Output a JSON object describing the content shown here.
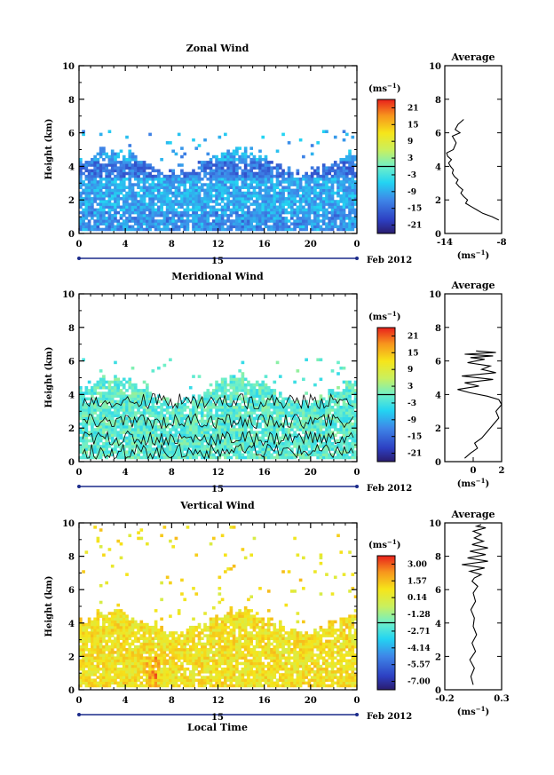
{
  "figure": {
    "date_label": "Feb 2012",
    "xlabel": "Local Time",
    "ylabel": "Height (km)",
    "unit_label": "(ms",
    "unit_sup": "−1",
    "average_title": "Average",
    "day_label": "15",
    "x_ticks": [
      "0",
      "4",
      "8",
      "12",
      "16",
      "20",
      "0"
    ],
    "y_ticks": [
      "0",
      "2",
      "4",
      "6",
      "8",
      "10"
    ]
  },
  "chart_data": [
    {
      "type": "heatmap",
      "title": "Zonal Wind",
      "xlabel": "",
      "ylabel": "Height (km)",
      "xlim": [
        0,
        24
      ],
      "ylim": [
        0,
        10
      ],
      "color_ticks": [
        "21",
        "15",
        "9",
        "3",
        "-3",
        "-9",
        "-15",
        "-21"
      ],
      "top_km": 4.6,
      "scatter_top_km": 6.1,
      "dominant_value": -8,
      "contour": false,
      "average": {
        "title": "Average",
        "xlim": [
          -14,
          -8
        ],
        "x_ticks": [
          "-14",
          "-8"
        ],
        "xlabel": "(ms",
        "x": [
          -8.3,
          -9,
          -10,
          -10.6,
          -11.2,
          -11.8,
          -11.6,
          -12,
          -12.3,
          -12.1,
          -12.5,
          -12.8,
          -12.6,
          -13,
          -13.2,
          -13.1,
          -13.4,
          -13.6,
          -13.3,
          -13.7,
          -13.8,
          -13.1,
          -12.8,
          -13.2,
          -12.4,
          -12.9,
          -12.6,
          -12
        ],
        "y": [
          0.8,
          1.0,
          1.2,
          1.4,
          1.6,
          1.8,
          2.0,
          2.2,
          2.4,
          2.6,
          2.8,
          3.0,
          3.2,
          3.4,
          3.6,
          3.8,
          4.0,
          4.2,
          4.4,
          4.6,
          4.8,
          5.0,
          5.4,
          5.8,
          6.0,
          6.2,
          6.5,
          6.8
        ]
      }
    },
    {
      "type": "heatmap",
      "title": "Meridional Wind",
      "xlabel": "",
      "ylabel": "Height (km)",
      "xlim": [
        0,
        24
      ],
      "ylim": [
        0,
        10
      ],
      "color_ticks": [
        "21",
        "15",
        "9",
        "3",
        "-3",
        "-9",
        "-15",
        "-21"
      ],
      "top_km": 4.6,
      "scatter_top_km": 6.1,
      "dominant_value": -1,
      "contour": true,
      "average": {
        "title": "Average",
        "xlim": [
          -2,
          2
        ],
        "x_ticks": [
          "0",
          "2"
        ],
        "xlabel": "(ms",
        "x": [
          -0.6,
          -0.2,
          0.3,
          0.1,
          0.6,
          1.0,
          1.4,
          1.8,
          1.6,
          2.0,
          1.8,
          1.0,
          -0.2,
          -1.1,
          0.4,
          -0.6,
          1.4,
          -0.8,
          1.6,
          0.6,
          1.2,
          -0.4,
          0.8,
          -0.2,
          1.4,
          -0.6,
          1.6,
          0.2
        ],
        "y": [
          0.2,
          0.5,
          0.8,
          1.1,
          1.4,
          1.8,
          2.2,
          2.6,
          3.0,
          3.4,
          3.7,
          3.9,
          4.1,
          4.3,
          4.5,
          4.7,
          4.9,
          5.1,
          5.3,
          5.5,
          5.7,
          5.9,
          6.1,
          6.2,
          6.3,
          6.4,
          6.5,
          6.6
        ]
      }
    },
    {
      "type": "heatmap",
      "title": "Vertical Wind",
      "xlabel": "Local Time",
      "ylabel": "Height (km)",
      "xlim": [
        0,
        24
      ],
      "ylim": [
        0,
        10
      ],
      "color_ticks": [
        "3.00",
        "1.57",
        "0.14",
        "-1.28",
        "-2.71",
        "-4.14",
        "-5.57",
        "-7.00"
      ],
      "top_km": 4.4,
      "scatter_top_km": 9.8,
      "dominant_value": 0.4,
      "contour": false,
      "average": {
        "title": "Average",
        "xlim": [
          -0.2,
          0.3
        ],
        "x_ticks": [
          "-0.2",
          "0.3"
        ],
        "xlabel": "(ms",
        "x": [
          0.05,
          0.03,
          0.06,
          0.02,
          0.07,
          0.04,
          0.08,
          0.05,
          0.06,
          0.03,
          0.07,
          0.05,
          0.09,
          0.04,
          0.06,
          0.12,
          0.02,
          0.15,
          -0.05,
          0.18,
          0.0,
          0.16,
          0.02,
          0.18,
          0.04,
          0.14,
          0.06,
          0.12,
          0.05,
          0.16,
          0.08,
          0.12
        ],
        "y": [
          0.3,
          0.8,
          1.3,
          1.8,
          2.3,
          2.8,
          3.3,
          3.8,
          4.3,
          4.8,
          5.3,
          5.8,
          6.2,
          6.5,
          6.7,
          6.9,
          7.1,
          7.3,
          7.5,
          7.7,
          7.9,
          8.1,
          8.3,
          8.5,
          8.7,
          8.9,
          9.1,
          9.3,
          9.5,
          9.7,
          9.8,
          9.9
        ]
      }
    }
  ]
}
